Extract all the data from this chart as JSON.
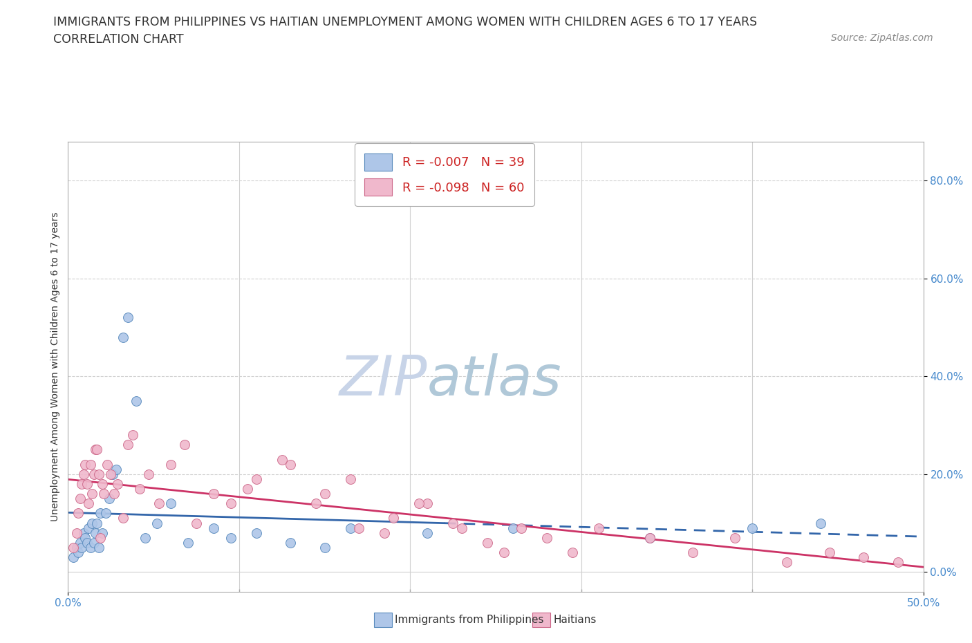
{
  "title": "IMMIGRANTS FROM PHILIPPINES VS HAITIAN UNEMPLOYMENT AMONG WOMEN WITH CHILDREN AGES 6 TO 17 YEARS",
  "subtitle": "CORRELATION CHART",
  "source": "Source: ZipAtlas.com",
  "ylabel": "Unemployment Among Women with Children Ages 6 to 17 years",
  "xlim": [
    0,
    50
  ],
  "ylim": [
    -4,
    88
  ],
  "yticks": [
    0,
    20,
    40,
    60,
    80
  ],
  "ytick_labels": [
    "0.0%",
    "20.0%",
    "40.0%",
    "60.0%",
    "80.0%"
  ],
  "xtick_labels": [
    "0.0%",
    "50.0%"
  ],
  "xtick_positions": [
    0,
    50
  ],
  "grid_color": "#d0d0d0",
  "background_color": "#ffffff",
  "watermark_zip": "ZIP",
  "watermark_atlas": "atlas",
  "legend_r1": "R = -0.007   N = 39",
  "legend_r2": "R = -0.098   N = 60",
  "color_philippines": "#aec6e8",
  "color_haiti": "#f0b8cc",
  "edge_color_philippines": "#5588bb",
  "edge_color_haiti": "#cc6688",
  "line_color_philippines": "#3366aa",
  "line_color_haiti": "#cc3366",
  "philippines_x": [
    0.3,
    0.5,
    0.6,
    0.7,
    0.8,
    0.9,
    1.0,
    1.1,
    1.2,
    1.3,
    1.4,
    1.5,
    1.6,
    1.7,
    1.8,
    1.9,
    2.0,
    2.2,
    2.4,
    2.6,
    2.8,
    3.2,
    3.5,
    4.0,
    4.5,
    5.2,
    6.0,
    7.0,
    8.5,
    9.5,
    11.0,
    13.0,
    15.0,
    16.5,
    21.0,
    26.0,
    34.0,
    40.0,
    44.0
  ],
  "philippines_y": [
    3,
    5,
    4,
    6,
    5,
    8,
    7,
    6,
    9,
    5,
    10,
    6,
    8,
    10,
    5,
    12,
    8,
    12,
    15,
    20,
    21,
    48,
    52,
    35,
    7,
    10,
    14,
    6,
    9,
    7,
    8,
    6,
    5,
    9,
    8,
    9,
    7,
    9,
    10
  ],
  "haiti_x": [
    0.3,
    0.5,
    0.6,
    0.7,
    0.8,
    0.9,
    1.0,
    1.1,
    1.2,
    1.3,
    1.4,
    1.5,
    1.6,
    1.7,
    1.8,
    1.9,
    2.0,
    2.1,
    2.3,
    2.5,
    2.7,
    2.9,
    3.2,
    3.5,
    3.8,
    4.2,
    4.7,
    5.3,
    6.0,
    6.8,
    7.5,
    8.5,
    9.5,
    11.0,
    13.0,
    15.0,
    17.0,
    19.0,
    21.0,
    23.0,
    25.5,
    28.0,
    31.0,
    34.0,
    36.5,
    39.0,
    42.0,
    44.5,
    46.5,
    48.5,
    10.5,
    12.5,
    14.5,
    16.5,
    18.5,
    20.5,
    22.5,
    24.5,
    26.5,
    29.5
  ],
  "haiti_y": [
    5,
    8,
    12,
    15,
    18,
    20,
    22,
    18,
    14,
    22,
    16,
    20,
    25,
    25,
    20,
    7,
    18,
    16,
    22,
    20,
    16,
    18,
    11,
    26,
    28,
    17,
    20,
    14,
    22,
    26,
    10,
    16,
    14,
    19,
    22,
    16,
    9,
    11,
    14,
    9,
    4,
    7,
    9,
    7,
    4,
    7,
    2,
    4,
    3,
    2,
    17,
    23,
    14,
    19,
    8,
    14,
    10,
    6,
    9,
    4
  ],
  "title_fontsize": 12.5,
  "subtitle_fontsize": 12.5,
  "source_fontsize": 10,
  "axis_label_fontsize": 10,
  "tick_fontsize": 11,
  "legend_fontsize": 13,
  "watermark_fontsize_zip": 58,
  "watermark_fontsize_atlas": 58,
  "watermark_color_zip": "#c8d4e8",
  "watermark_color_atlas": "#b0c8d8",
  "marker_size": 100,
  "legend_label_color": "#cc2222"
}
